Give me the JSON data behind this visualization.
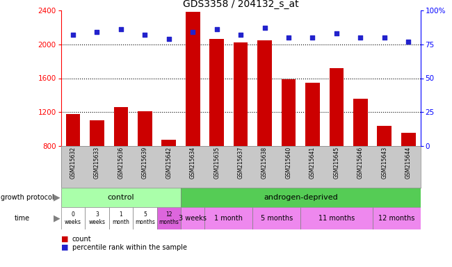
{
  "title": "GDS3358 / 204132_s_at",
  "samples": [
    "GSM215632",
    "GSM215633",
    "GSM215636",
    "GSM215639",
    "GSM215642",
    "GSM215634",
    "GSM215635",
    "GSM215637",
    "GSM215638",
    "GSM215640",
    "GSM215641",
    "GSM215645",
    "GSM215646",
    "GSM215643",
    "GSM215644"
  ],
  "bar_values": [
    1175,
    1100,
    1260,
    1210,
    870,
    2380,
    2060,
    2020,
    2050,
    1590,
    1550,
    1720,
    1360,
    1040,
    960
  ],
  "percentile_values": [
    82,
    84,
    86,
    82,
    79,
    84,
    86,
    82,
    87,
    80,
    80,
    83,
    80,
    80,
    77
  ],
  "ylim_min": 800,
  "ylim_max": 2400,
  "yticks": [
    800,
    1200,
    1600,
    2000,
    2400
  ],
  "pct_ylim_min": 0,
  "pct_ylim_max": 100,
  "pct_yticks": [
    0,
    25,
    50,
    75,
    100
  ],
  "bar_color": "#cc0000",
  "scatter_color": "#2222cc",
  "grid_color": "#888888",
  "control_color": "#aaffaa",
  "androgen_color": "#55cc55",
  "time_white": "#ffffff",
  "time_pink": "#ee88ee",
  "time_pink2": "#dd66dd",
  "control_label": "control",
  "androgen_label": "androgen-deprived",
  "time_control_labels": [
    "0\nweeks",
    "3\nweeks",
    "1\nmonth",
    "5\nmonths",
    "12\nmonths"
  ],
  "time_androgen_labels": [
    "3 weeks",
    "1 month",
    "5 months",
    "11 months",
    "12 months"
  ],
  "time_androgen_counts": [
    1,
    2,
    2,
    3,
    2
  ],
  "growth_protocol_label": "growth protocol",
  "time_label": "time",
  "legend_count": "count",
  "legend_pct": "percentile rank within the sample",
  "bar_width": 0.6,
  "sample_bg_color": "#c8c8c8"
}
